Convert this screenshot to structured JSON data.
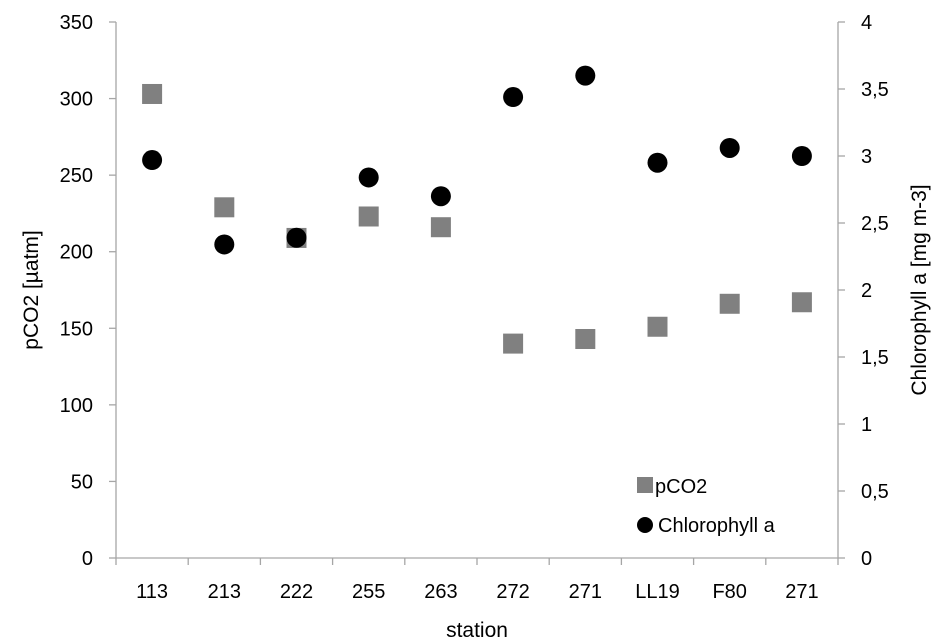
{
  "chart_data": {
    "type": "scatter",
    "xlabel": "station",
    "ylabel": "pCO2 [µatm]",
    "y2label": "Chlorophyll a [mg m-3]",
    "categories": [
      "113",
      "213",
      "222",
      "255",
      "263",
      "272",
      "271",
      "LL19",
      "F80",
      "271"
    ],
    "ylim": [
      0,
      350
    ],
    "y2lim": [
      0,
      4
    ],
    "yticks": [
      "0",
      "50",
      "100",
      "150",
      "200",
      "250",
      "300",
      "350"
    ],
    "y2ticks": [
      "0",
      "0,5",
      "1",
      "1,5",
      "2",
      "2,5",
      "3",
      "3,5",
      "4"
    ],
    "grid": false,
    "legend_position": "bottom-right",
    "series": [
      {
        "name": "pCO2",
        "axis": "left",
        "marker": "square",
        "color": "#808080",
        "values": [
          303,
          229,
          209,
          223,
          216,
          140,
          143,
          151,
          166,
          167
        ]
      },
      {
        "name": "Chlorophyll a",
        "axis": "right",
        "marker": "circle",
        "color": "#000000",
        "values": [
          2.97,
          2.34,
          2.39,
          2.84,
          2.7,
          3.44,
          3.6,
          2.95,
          3.06,
          3.0
        ]
      }
    ]
  }
}
